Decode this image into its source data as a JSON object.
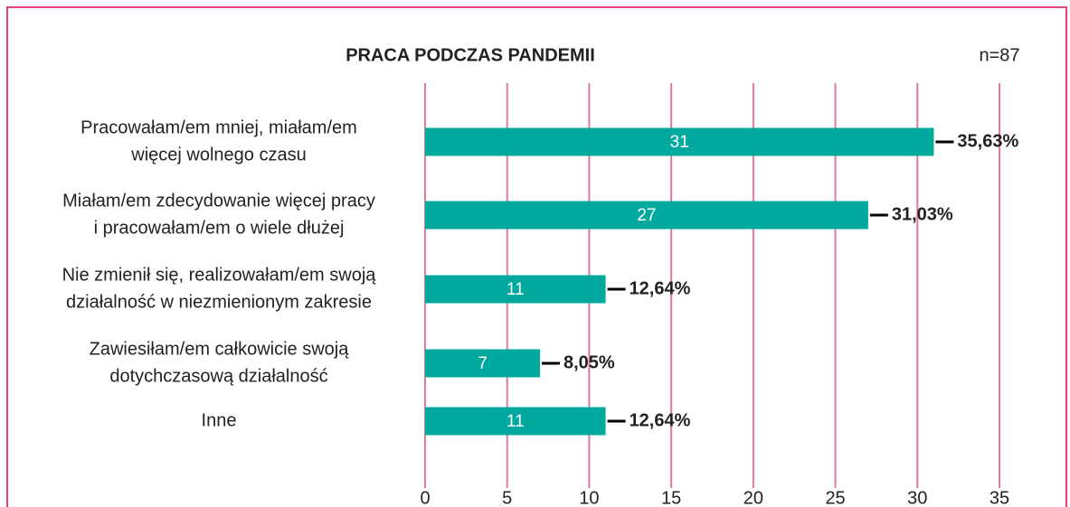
{
  "chart_data": {
    "type": "hbar",
    "title": "PRACA PODCZAS PANDEMII",
    "annotation": "n=87",
    "categories": [
      [
        "Pracowałam/em mniej, miałam/em",
        "więcej wolnego czasu"
      ],
      [
        "Miałam/em zdecydowanie więcej pracy",
        "i pracowałam/em o wiele dłużej"
      ],
      [
        "Nie zmienił się, realizowałam/em swoją",
        "działalność w niezmienionym zakresie"
      ],
      [
        "Zawiesiłam/em całkowicie swoją",
        "dotychczasową działalność"
      ],
      [
        "Inne"
      ]
    ],
    "values": [
      31,
      27,
      11,
      7,
      11
    ],
    "percentage_labels": [
      "35,63%",
      "31,03%",
      "12,64%",
      "8,05%",
      "12,64%"
    ],
    "color": "#00a99d",
    "grid_color": "#e2779f",
    "xlim": [
      0,
      35
    ],
    "xticks": [
      0,
      5,
      10,
      15,
      20,
      25,
      30,
      35
    ],
    "grid": true
  }
}
